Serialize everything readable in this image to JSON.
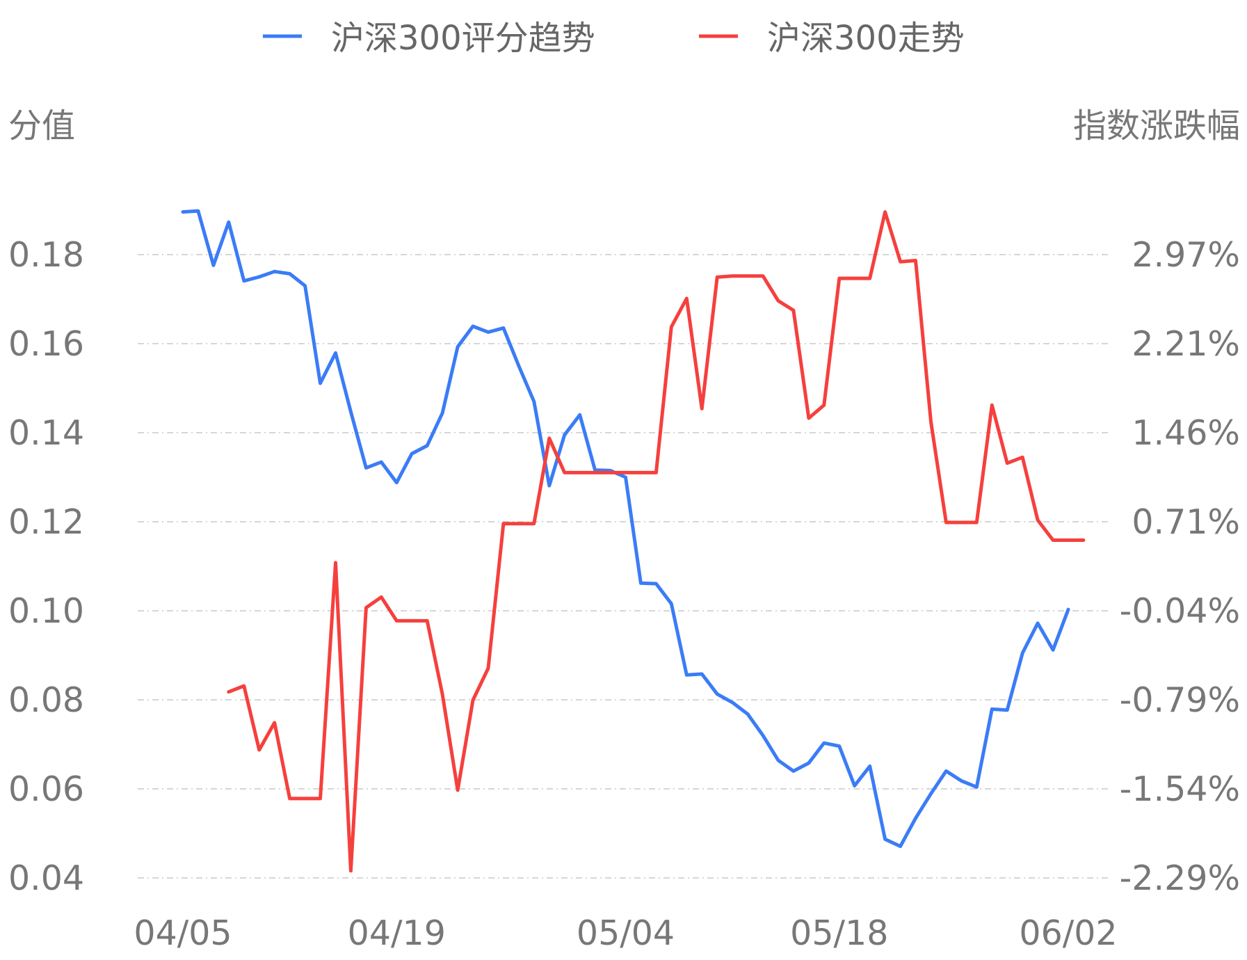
{
  "chart_data": {
    "type": "line",
    "legend": {
      "position": "top-center"
    },
    "y_left_label": "分值",
    "y_right_label": "指数涨跌幅",
    "y_left_ticks": [
      "0.04",
      "0.06",
      "0.08",
      "0.10",
      "0.12",
      "0.14",
      "0.16",
      "0.18"
    ],
    "y_right_ticks": [
      "-2.29%",
      "-1.54%",
      "-0.79%",
      "-0.04%",
      "0.71%",
      "1.46%",
      "2.21%",
      "2.97%"
    ],
    "y_left_lim": [
      0.04,
      0.18
    ],
    "y_right_lim": [
      -2.29,
      2.97
    ],
    "x_ticks": [
      {
        "label": "04/05",
        "index": 0
      },
      {
        "label": "04/19",
        "index": 14
      },
      {
        "label": "05/04",
        "index": 29
      },
      {
        "label": "05/18",
        "index": 43
      },
      {
        "label": "06/02",
        "index": 58
      }
    ],
    "grid": true,
    "series": [
      {
        "name": "沪深300评分趋势",
        "color": "#3b7cf6",
        "axis": "left",
        "values": [
          0.1896,
          0.1898,
          0.1776,
          0.1873,
          0.1741,
          0.175,
          0.1762,
          0.1757,
          0.173,
          0.1511,
          0.1579,
          0.1447,
          0.1321,
          0.1334,
          0.1288,
          0.1353,
          0.1371,
          0.1444,
          0.1593,
          0.1639,
          0.1626,
          0.1635,
          0.155,
          0.147,
          0.1281,
          0.1395,
          0.144,
          0.1316,
          0.1315,
          0.13,
          0.1062,
          0.1061,
          0.1016,
          0.0856,
          0.0858,
          0.0813,
          0.0794,
          0.0768,
          0.072,
          0.0664,
          0.064,
          0.0658,
          0.0703,
          0.0696,
          0.0607,
          0.0651,
          0.0487,
          0.0471,
          0.0534,
          0.0589,
          0.064,
          0.0618,
          0.0604,
          0.0779,
          0.0777,
          0.0905,
          0.0972,
          0.0912,
          0.1003
        ]
      },
      {
        "name": "沪深300走势",
        "color": "#f5403d",
        "axis": "right",
        "start_index": 3,
        "values": [
          -0.72,
          -0.67,
          -1.21,
          -0.98,
          -1.62,
          -1.62,
          -1.62,
          0.37,
          -2.23,
          -0.01,
          0.08,
          -0.12,
          -0.12,
          -0.12,
          -0.74,
          -1.55,
          -0.79,
          -0.52,
          0.7,
          0.7,
          0.7,
          1.42,
          1.13,
          1.13,
          1.13,
          1.13,
          1.13,
          1.13,
          1.13,
          2.36,
          2.6,
          1.67,
          2.78,
          2.79,
          2.79,
          2.79,
          2.58,
          2.5,
          1.59,
          1.7,
          2.77,
          2.77,
          2.77,
          3.33,
          2.91,
          2.92,
          1.56,
          0.71,
          0.71,
          0.71,
          1.7,
          1.21,
          1.26,
          0.73,
          0.56,
          0.56,
          0.56
        ]
      }
    ]
  }
}
